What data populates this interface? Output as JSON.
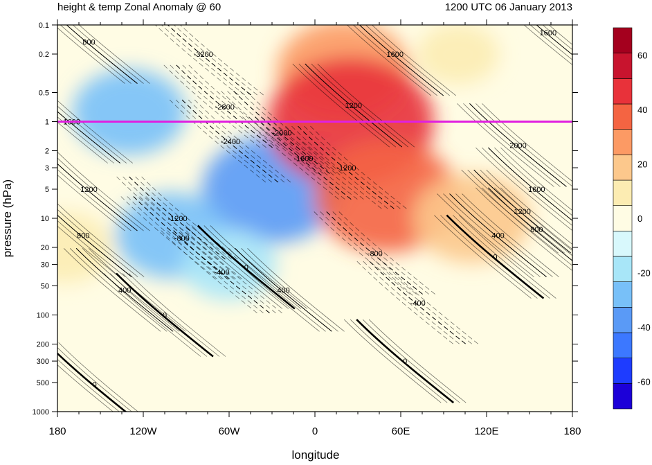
{
  "header": {
    "title": "height & temp Zonal Anomaly @ 60",
    "timestamp": "1200 UTC 06 January 2013"
  },
  "chart_data": {
    "type": "heatmap",
    "subtype": "longitude-pressure cross section with contour overlay",
    "xlabel": "longitude",
    "ylabel": "pressure (hPa)",
    "x_ticks": [
      {
        "lon": -180,
        "label": "180"
      },
      {
        "lon": -120,
        "label": "120W"
      },
      {
        "lon": -60,
        "label": "60W"
      },
      {
        "lon": 0,
        "label": "0"
      },
      {
        "lon": 60,
        "label": "60E"
      },
      {
        "lon": 120,
        "label": "120E"
      },
      {
        "lon": 180,
        "label": "180"
      }
    ],
    "x_range": [
      -180,
      180
    ],
    "y_scale": "log",
    "y_reversed": true,
    "y_range": [
      1000,
      0.1
    ],
    "y_ticks": [
      {
        "p": 0.1,
        "label": "0.1"
      },
      {
        "p": 0.2,
        "label": "0.2"
      },
      {
        "p": 0.5,
        "label": "0.5"
      },
      {
        "p": 1,
        "label": "1"
      },
      {
        "p": 2,
        "label": "2"
      },
      {
        "p": 3,
        "label": "3"
      },
      {
        "p": 5,
        "label": "5"
      },
      {
        "p": 10,
        "label": "10"
      },
      {
        "p": 20,
        "label": "20"
      },
      {
        "p": 30,
        "label": "30"
      },
      {
        "p": 50,
        "label": "50"
      },
      {
        "p": 100,
        "label": "100"
      },
      {
        "p": 200,
        "label": "200"
      },
      {
        "p": 300,
        "label": "300"
      },
      {
        "p": 500,
        "label": "500"
      },
      {
        "p": 1000,
        "label": "1000"
      }
    ],
    "reference_line": {
      "p": 1,
      "color": "#e020e0"
    },
    "colorbar": {
      "levels": [
        -70,
        -60,
        -50,
        -40,
        -30,
        -20,
        -10,
        0,
        10,
        20,
        30,
        40,
        50,
        60,
        70
      ],
      "labels": [
        "-60",
        "-40",
        "-20",
        "0",
        "20",
        "40",
        "60"
      ],
      "label_values": [
        -60,
        -40,
        -20,
        0,
        20,
        40,
        60
      ],
      "colors": [
        "#1c00d8",
        "#1e3cff",
        "#3c78ff",
        "#5a9af6",
        "#78c0f8",
        "#a8e6f8",
        "#d8f8fc",
        "#fffce4",
        "#fcecb2",
        "#fcc88c",
        "#fc9a64",
        "#f46442",
        "#e8323a",
        "#c8142e",
        "#a4001e"
      ]
    },
    "temperature_shading": [
      {
        "lon": -130,
        "p": 0.8,
        "value": -26
      },
      {
        "lon": -30,
        "p": 5,
        "value": -38
      },
      {
        "lon": -100,
        "p": 15,
        "value": -26
      },
      {
        "lon": -60,
        "p": 30,
        "value": -18
      },
      {
        "lon": 20,
        "p": 0.3,
        "value": 35
      },
      {
        "lon": 25,
        "p": 1,
        "value": 50
      },
      {
        "lon": 50,
        "p": 6,
        "value": 40
      },
      {
        "lon": 110,
        "p": 10,
        "value": 28
      },
      {
        "lon": -175,
        "p": 20,
        "value": 18
      },
      {
        "lon": 100,
        "p": 0.2,
        "value": 12
      }
    ],
    "height_contour_labels": [
      {
        "lon": -158,
        "p": 0.15,
        "label": "800"
      },
      {
        "lon": -78,
        "p": 0.2,
        "label": "-3200"
      },
      {
        "lon": -63,
        "p": 0.7,
        "label": "-2800"
      },
      {
        "lon": -59,
        "p": 1.6,
        "label": "-2400"
      },
      {
        "lon": -23,
        "p": 1.3,
        "label": "-2000"
      },
      {
        "lon": -8,
        "p": 2.4,
        "label": "-1600"
      },
      {
        "lon": 22,
        "p": 3,
        "label": "-1200"
      },
      {
        "lon": -96,
        "p": 10,
        "label": "-1200"
      },
      {
        "lon": -93,
        "p": 16,
        "label": "-800"
      },
      {
        "lon": 42,
        "p": 23,
        "label": "-800"
      },
      {
        "lon": -65,
        "p": 36,
        "label": "-400"
      },
      {
        "lon": 72,
        "p": 75,
        "label": "-400"
      },
      {
        "lon": -170,
        "p": 1,
        "label": "1600"
      },
      {
        "lon": 27,
        "p": 0.68,
        "label": "1200"
      },
      {
        "lon": 56,
        "p": 0.2,
        "label": "1600"
      },
      {
        "lon": 163,
        "p": 0.12,
        "label": "1600"
      },
      {
        "lon": 142,
        "p": 1.75,
        "label": "2000"
      },
      {
        "lon": 155,
        "p": 5,
        "label": "1600"
      },
      {
        "lon": 145,
        "p": 8.5,
        "label": "1200"
      },
      {
        "lon": 155,
        "p": 13,
        "label": "800"
      },
      {
        "lon": 128,
        "p": 15,
        "label": "400"
      },
      {
        "lon": 126,
        "p": 25,
        "label": "0"
      },
      {
        "lon": -158,
        "p": 5,
        "label": "1200"
      },
      {
        "lon": -162,
        "p": 15,
        "label": "800"
      },
      {
        "lon": -133,
        "p": 55,
        "label": "400"
      },
      {
        "lon": -105,
        "p": 100,
        "label": "0"
      },
      {
        "lon": -48,
        "p": 32,
        "label": "0"
      },
      {
        "lon": -22,
        "p": 55,
        "label": "400"
      },
      {
        "lon": -154,
        "p": 520,
        "label": "0"
      },
      {
        "lon": 63,
        "p": 300,
        "label": "0"
      }
    ]
  }
}
